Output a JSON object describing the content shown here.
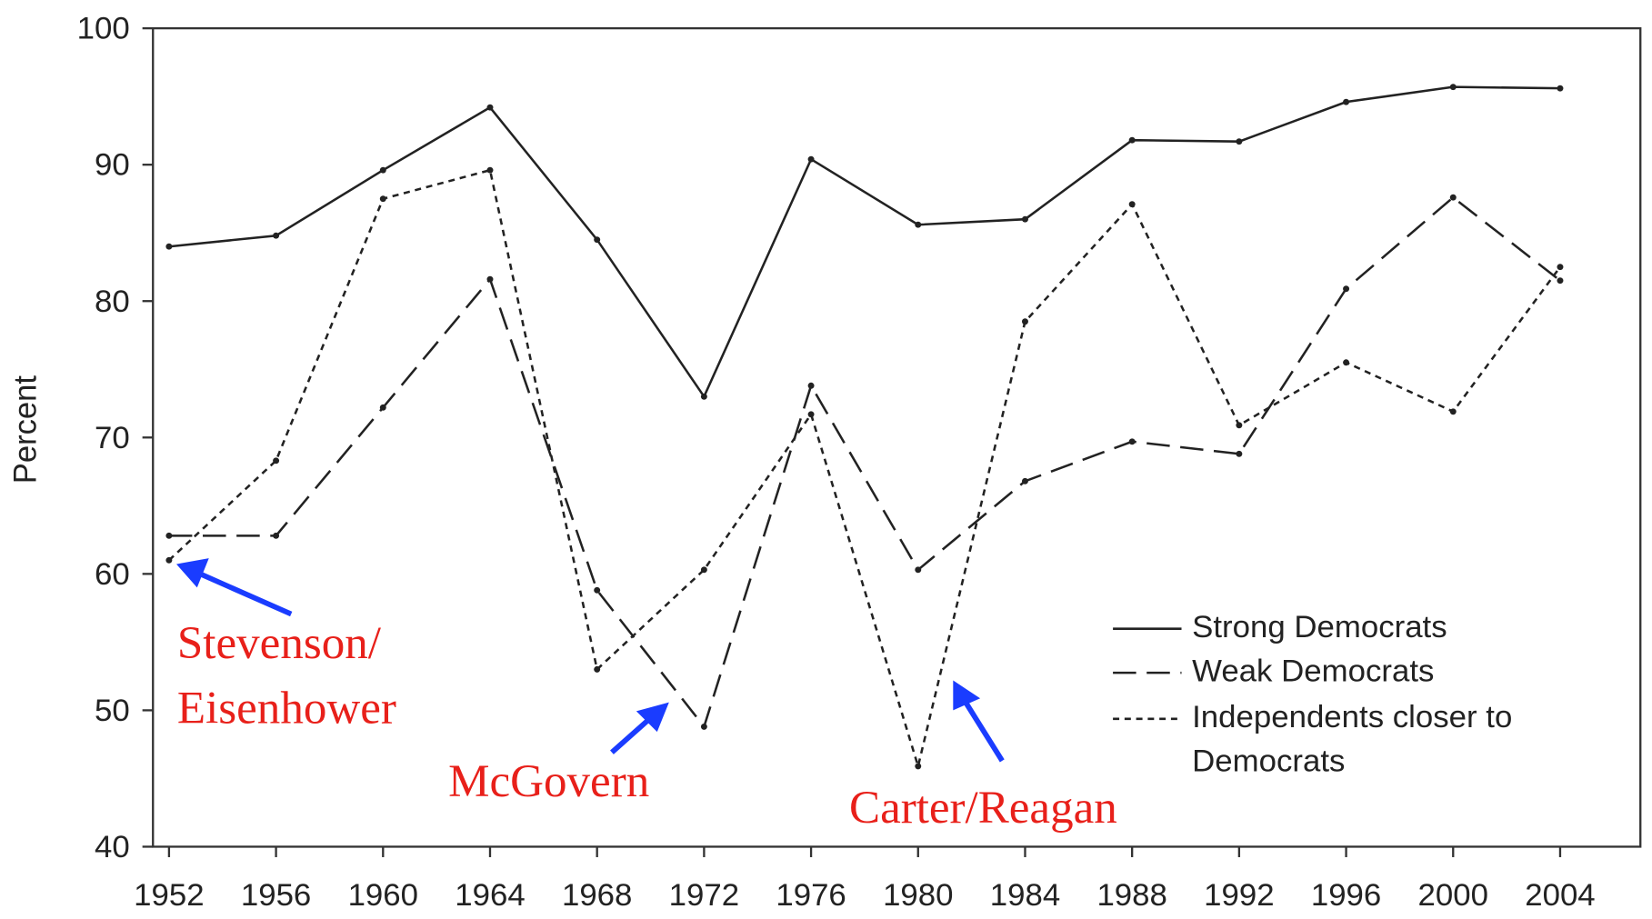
{
  "chart_data": {
    "type": "line",
    "y_label": "Percent",
    "x": [
      1952,
      1956,
      1960,
      1964,
      1968,
      1972,
      1976,
      1980,
      1984,
      1988,
      1992,
      1996,
      2000,
      2004
    ],
    "xlim": [
      1951.4,
      2007
    ],
    "xticks": [
      1952,
      1956,
      1960,
      1964,
      1968,
      1972,
      1976,
      1980,
      1984,
      1988,
      1992,
      1996,
      2000,
      2004
    ],
    "ylim": [
      40,
      100
    ],
    "yticks": [
      40,
      50,
      60,
      70,
      80,
      90,
      100
    ],
    "series": [
      {
        "name": "Strong Democrats",
        "color": "#222222",
        "dash": "solid",
        "values": [
          84,
          84.8,
          89.6,
          94.2,
          84.5,
          73,
          90.4,
          85.6,
          86,
          91.8,
          91.7,
          94.6,
          95.7,
          95.6
        ]
      },
      {
        "name": "Weak Democrats",
        "color": "#222222",
        "dash": "long",
        "values": [
          62.8,
          62.8,
          72.2,
          81.6,
          58.8,
          48.8,
          73.8,
          60.3,
          66.8,
          69.7,
          68.8,
          80.9,
          87.6,
          81.5
        ]
      },
      {
        "name": "Independents closer to Democrats",
        "color": "#222222",
        "dash": "short",
        "values": [
          61,
          68.3,
          87.5,
          89.6,
          53,
          60.3,
          71.7,
          45.9,
          78.5,
          87.1,
          70.9,
          75.5,
          71.9,
          82.5
        ]
      }
    ],
    "annotations": [
      {
        "lines": [
          "Stevenson/",
          "Eisenhower"
        ]
      },
      {
        "lines": [
          "McGovern"
        ]
      },
      {
        "lines": [
          "Carter/Reagan"
        ]
      }
    ]
  }
}
